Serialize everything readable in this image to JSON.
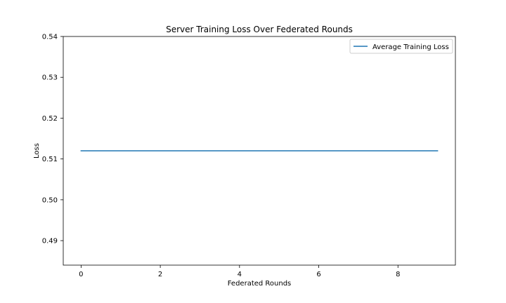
{
  "chart_data": {
    "type": "line",
    "title": "Server Training Loss Over Federated Rounds",
    "xlabel": "Federated Rounds",
    "ylabel": "Loss",
    "xlim": [
      -0.45,
      9.45
    ],
    "ylim": [
      0.484,
      0.54
    ],
    "xticks": [
      0,
      2,
      4,
      6,
      8
    ],
    "yticks": [
      0.49,
      0.5,
      0.51,
      0.52,
      0.53,
      0.54
    ],
    "ytick_labels": [
      "0.49",
      "0.50",
      "0.51",
      "0.52",
      "0.53",
      "0.54"
    ],
    "grid": false,
    "legend_position": "top-right",
    "x": [
      0,
      1,
      2,
      3,
      4,
      5,
      6,
      7,
      8,
      9
    ],
    "series": [
      {
        "name": "Average Training Loss",
        "color": "#1f77b4",
        "values": [
          0.512,
          0.512,
          0.512,
          0.512,
          0.512,
          0.512,
          0.512,
          0.512,
          0.512,
          0.512
        ]
      }
    ]
  }
}
